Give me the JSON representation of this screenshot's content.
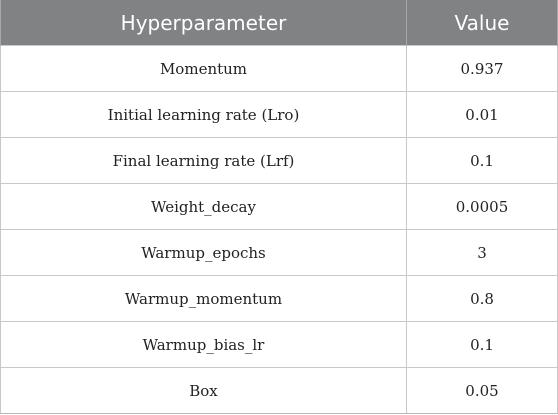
{
  "table": {
    "headers": [
      "Hyperparameter",
      "Value"
    ],
    "rows": [
      {
        "param": "Momentum",
        "value": "0.937"
      },
      {
        "param": "Initial learning rate (Lro)",
        "value": "0.01"
      },
      {
        "param": "Final learning rate (Lrf)",
        "value": "0.1"
      },
      {
        "param": "Weight_decay",
        "value": "0.0005"
      },
      {
        "param": "Warmup_epochs",
        "value": "3"
      },
      {
        "param": "Warmup_momentum",
        "value": "0.8"
      },
      {
        "param": "Warmup_bias_lr",
        "value": "0.1"
      },
      {
        "param": "Box",
        "value": "0.05"
      }
    ]
  },
  "colors": {
    "header_bg": "#818284",
    "header_text": "#ffffff",
    "grid": "#c8c8c8",
    "cell_text": "#222222"
  }
}
